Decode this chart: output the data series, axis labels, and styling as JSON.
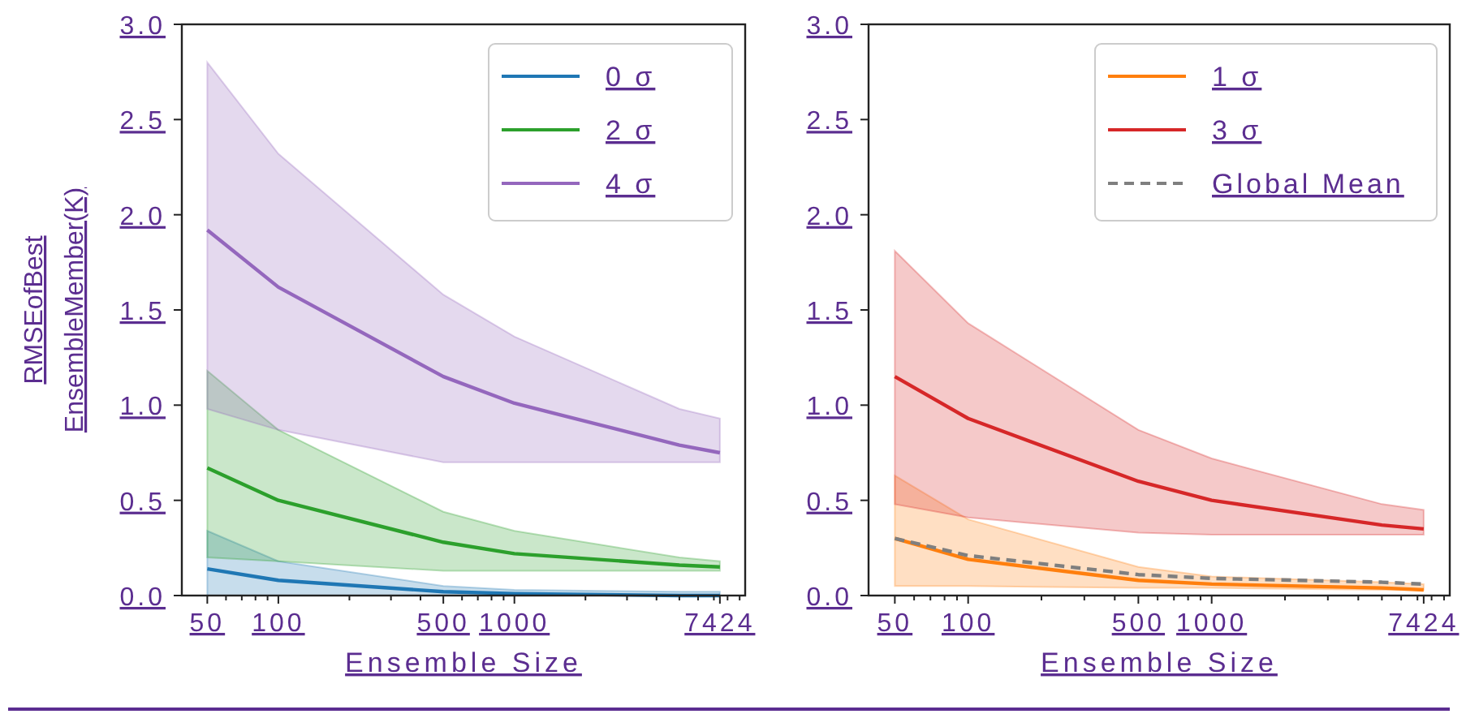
{
  "chart_data": [
    {
      "type": "line",
      "xlabel": "Ensemble Size",
      "ylabel": "RMSEofBest\nEnsembleMember(K)",
      "log": "x",
      "x": [
        50,
        100,
        500,
        1000,
        5000,
        7424
      ],
      "xlim": [
        39,
        9500
      ],
      "xticks": [
        50,
        {
          "value": 60,
          "label": null
        },
        {
          "value": 70,
          "label": null
        },
        {
          "value": 80,
          "label": null
        },
        {
          "value": 90,
          "label": null
        },
        100,
        {
          "value": 200,
          "label": null
        },
        {
          "value": 300,
          "label": null
        },
        {
          "value": 400,
          "label": null
        },
        500,
        {
          "value": 600,
          "label": null
        },
        {
          "value": 700,
          "label": null
        },
        {
          "value": 800,
          "label": null
        },
        {
          "value": 900,
          "label": null
        },
        1000,
        {
          "value": 2000,
          "label": null
        },
        {
          "value": 3000,
          "label": null
        },
        {
          "value": 4000,
          "label": null
        },
        {
          "value": 5000,
          "label": null
        },
        {
          "value": 6000,
          "label": null
        },
        {
          "value": 7000,
          "label": null
        },
        7424,
        {
          "value": 8000,
          "label": null
        },
        {
          "value": 9000,
          "label": null
        }
      ],
      "ylim": [
        0,
        3
      ],
      "yticks": [
        {
          "value": 0,
          "label": "0.0"
        },
        {
          "value": 0.5,
          "label": "0.5"
        },
        {
          "value": 1,
          "label": "1.0"
        },
        {
          "value": 1.5,
          "label": "1.5"
        },
        {
          "value": 2,
          "label": "2.0"
        },
        {
          "value": 2.5,
          "label": "2.5"
        },
        {
          "value": 3,
          "label": "3.0"
        }
      ],
      "legend": "top right",
      "grid": false,
      "series": [
        {
          "name": "0 σ",
          "color": "#1f77b4",
          "values": [
            0.14,
            0.08,
            0.02,
            0.01,
            0.0,
            0.0
          ],
          "lower": [
            0,
            0,
            0,
            0,
            0,
            0
          ],
          "upper": [
            0.34,
            0.18,
            0.05,
            0.03,
            0.02,
            0.02
          ]
        },
        {
          "name": "2 σ",
          "color": "#2ca02c",
          "values": [
            0.67,
            0.5,
            0.28,
            0.22,
            0.16,
            0.15
          ],
          "lower": [
            0.2,
            0.18,
            0.13,
            0.13,
            0.13,
            0.13
          ],
          "upper": [
            1.18,
            0.87,
            0.44,
            0.34,
            0.2,
            0.18
          ]
        },
        {
          "name": "4 σ",
          "color": "#9467bd",
          "values": [
            1.92,
            1.62,
            1.15,
            1.01,
            0.79,
            0.75
          ],
          "lower": [
            0.98,
            0.87,
            0.7,
            0.7,
            0.7,
            0.7
          ],
          "upper": [
            2.8,
            2.32,
            1.58,
            1.36,
            0.98,
            0.93
          ]
        }
      ]
    },
    {
      "type": "line",
      "xlabel": "Ensemble Size",
      "log": "x",
      "x": [
        50,
        100,
        500,
        1000,
        5000,
        7424
      ],
      "xlim": [
        39,
        9500
      ],
      "xticks": [
        50,
        {
          "value": 60,
          "label": null
        },
        {
          "value": 70,
          "label": null
        },
        {
          "value": 80,
          "label": null
        },
        {
          "value": 90,
          "label": null
        },
        100,
        {
          "value": 200,
          "label": null
        },
        {
          "value": 300,
          "label": null
        },
        {
          "value": 400,
          "label": null
        },
        500,
        {
          "value": 600,
          "label": null
        },
        {
          "value": 700,
          "label": null
        },
        {
          "value": 800,
          "label": null
        },
        {
          "value": 900,
          "label": null
        },
        1000,
        {
          "value": 2000,
          "label": null
        },
        {
          "value": 3000,
          "label": null
        },
        {
          "value": 4000,
          "label": null
        },
        {
          "value": 5000,
          "label": null
        },
        {
          "value": 6000,
          "label": null
        },
        {
          "value": 7000,
          "label": null
        },
        7424,
        {
          "value": 8000,
          "label": null
        },
        {
          "value": 9000,
          "label": null
        }
      ],
      "ylim": [
        0,
        3
      ],
      "yticks": [
        {
          "value": 0,
          "label": "0.0"
        },
        {
          "value": 0.5,
          "label": "0.5"
        },
        {
          "value": 1,
          "label": "1.0"
        },
        {
          "value": 1.5,
          "label": "1.5"
        },
        {
          "value": 2,
          "label": "2.0"
        },
        {
          "value": 2.5,
          "label": "2.5"
        },
        {
          "value": 3,
          "label": "3.0"
        }
      ],
      "legend": "top right",
      "grid": false,
      "series": [
        {
          "name": "1 σ",
          "color": "#ff7f0e",
          "values": [
            0.3,
            0.19,
            0.08,
            0.06,
            0.04,
            0.03
          ],
          "lower": [
            0.05,
            0.05,
            0.04,
            0.04,
            0.03,
            0.03
          ],
          "upper": [
            0.63,
            0.4,
            0.15,
            0.1,
            0.07,
            0.06
          ]
        },
        {
          "name": "3 σ",
          "color": "#d62728",
          "values": [
            1.15,
            0.93,
            0.6,
            0.5,
            0.37,
            0.35
          ],
          "lower": [
            0.48,
            0.41,
            0.33,
            0.32,
            0.32,
            0.32
          ],
          "upper": [
            1.81,
            1.43,
            0.87,
            0.72,
            0.48,
            0.45
          ]
        },
        {
          "name": "Global Mean",
          "color": "#7f7f7f",
          "line_style": "dashed",
          "values": [
            0.3,
            0.21,
            0.11,
            0.09,
            0.07,
            0.06
          ]
        }
      ]
    }
  ]
}
